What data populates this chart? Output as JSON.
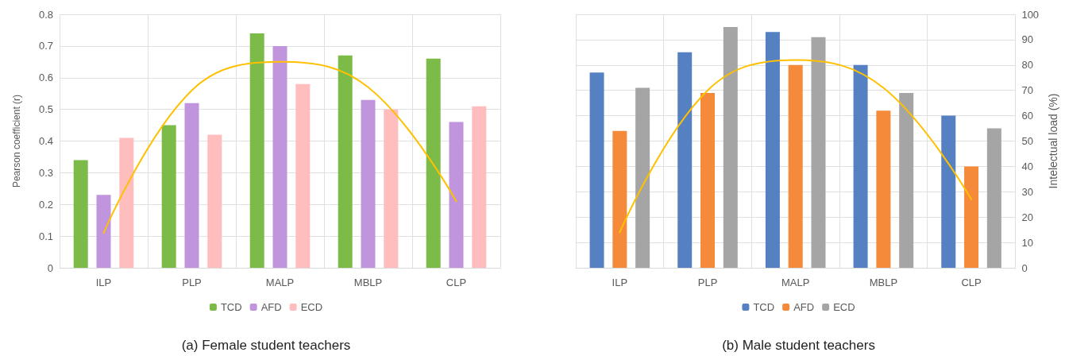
{
  "chart_data": [
    {
      "type": "bar",
      "title": "(a) Female student teachers",
      "ylabel": "Pearson coefficient (r)",
      "categories": [
        "ILP",
        "PLP",
        "MALP",
        "MBLP",
        "CLP"
      ],
      "series": [
        {
          "name": "TCD",
          "color": "#7cbb48",
          "values": [
            0.34,
            0.45,
            0.74,
            0.67,
            0.66
          ]
        },
        {
          "name": "AFD",
          "color": "#c095de",
          "values": [
            0.23,
            0.52,
            0.7,
            0.53,
            0.46
          ]
        },
        {
          "name": "ECD",
          "color": "#ffbdbd",
          "values": [
            0.41,
            0.42,
            0.58,
            0.5,
            0.51
          ]
        },
        {
          "type": "line",
          "color": "#ffc000",
          "values": [
            0.11,
            0.56,
            0.65,
            0.57,
            0.21
          ]
        }
      ],
      "ylim": [
        0,
        0.8
      ],
      "yticks": [
        0,
        0.1,
        0.2,
        0.3,
        0.4,
        0.5,
        0.6,
        0.7,
        0.8
      ],
      "grid": true,
      "legend": "bottom",
      "marker": "none",
      "line_style": "solid"
    },
    {
      "type": "bar",
      "title": "(b) Male student teachers",
      "y2label": "Intelectual load (%)",
      "categories": [
        "ILP",
        "PLP",
        "MALP",
        "MBLP",
        "CLP"
      ],
      "series": [
        {
          "name": "TCD",
          "color": "#5580c2",
          "axis": "y2",
          "values": [
            77,
            85,
            93,
            80,
            60
          ]
        },
        {
          "name": "AFD",
          "color": "#f58a3a",
          "axis": "y2",
          "values": [
            54,
            69,
            80,
            62,
            40
          ]
        },
        {
          "name": "ECD",
          "color": "#a5a5a5",
          "axis": "y2",
          "values": [
            71,
            95,
            91,
            69,
            55
          ]
        },
        {
          "type": "line",
          "axis": "y2",
          "color": "#ffc000",
          "values": [
            14,
            70,
            82,
            71,
            27
          ]
        }
      ],
      "y2lim": [
        0,
        100
      ],
      "y2ticks": [
        0,
        10,
        20,
        30,
        40,
        50,
        60,
        70,
        80,
        90,
        100
      ],
      "grid": true,
      "legend": "bottom",
      "marker": "none",
      "line_style": "solid"
    }
  ]
}
